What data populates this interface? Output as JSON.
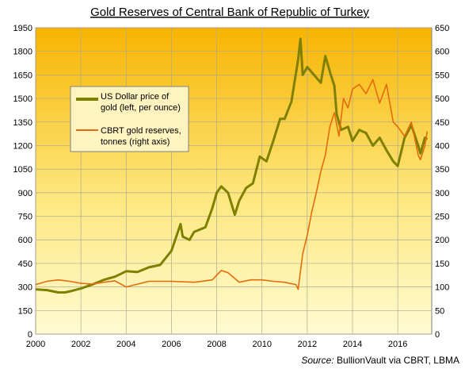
{
  "chart_data": {
    "type": "line",
    "title": "Gold Reserves of Central Bank of Republic of Turkey",
    "x_ticks": [
      "2000",
      "2002",
      "2004",
      "2006",
      "2008",
      "2010",
      "2012",
      "2014",
      "2016"
    ],
    "xlim": [
      2000,
      2017.5
    ],
    "y_left": {
      "ticks": [
        "0",
        "150",
        "300",
        "450",
        "600",
        "750",
        "900",
        "1050",
        "1200",
        "1350",
        "1500",
        "1650",
        "1800",
        "1950"
      ],
      "lim": [
        0,
        1950
      ]
    },
    "y_right": {
      "ticks": [
        "0",
        "50",
        "100",
        "150",
        "200",
        "250",
        "300",
        "350",
        "400",
        "450",
        "500",
        "550",
        "600",
        "650"
      ],
      "lim": [
        0,
        650
      ]
    },
    "grid": true,
    "legend_position": "upper-left",
    "series": [
      {
        "name": "US Dollar price of gold (left, per ounce)",
        "axis": "left",
        "color": "#7f7f00",
        "x": [
          2000.0,
          2000.5,
          2001.0,
          2001.3,
          2001.6,
          2002.0,
          2002.5,
          2003.0,
          2003.5,
          2004.0,
          2004.5,
          2005.0,
          2005.5,
          2006.0,
          2006.4,
          2006.5,
          2006.8,
          2007.0,
          2007.5,
          2007.8,
          2008.0,
          2008.2,
          2008.5,
          2008.8,
          2009.0,
          2009.3,
          2009.6,
          2009.9,
          2010.2,
          2010.5,
          2010.8,
          2011.0,
          2011.3,
          2011.6,
          2011.7,
          2011.8,
          2012.0,
          2012.3,
          2012.6,
          2012.8,
          2013.0,
          2013.2,
          2013.3,
          2013.5,
          2013.8,
          2014.0,
          2014.3,
          2014.6,
          2014.9,
          2015.2,
          2015.5,
          2015.8,
          2016.0,
          2016.3,
          2016.6,
          2016.9,
          2017.0,
          2017.2,
          2017.3
        ],
        "values": [
          285,
          280,
          265,
          265,
          275,
          290,
          315,
          345,
          365,
          400,
          395,
          425,
          440,
          530,
          700,
          620,
          600,
          650,
          680,
          800,
          900,
          940,
          900,
          760,
          850,
          930,
          960,
          1130,
          1100,
          1230,
          1370,
          1370,
          1480,
          1750,
          1880,
          1650,
          1700,
          1650,
          1600,
          1770,
          1670,
          1580,
          1400,
          1300,
          1320,
          1230,
          1300,
          1280,
          1200,
          1250,
          1170,
          1100,
          1070,
          1250,
          1330,
          1200,
          1150,
          1250,
          1240
        ]
      },
      {
        "name": "CBRT gold reserves, tonnes (right axis)",
        "axis": "right",
        "color": "#e46c0a",
        "x": [
          2000.0,
          2000.5,
          2001.0,
          2001.5,
          2002.0,
          2002.5,
          2003.0,
          2003.5,
          2004.0,
          2005.0,
          2006.0,
          2007.0,
          2007.8,
          2008.2,
          2008.5,
          2009.0,
          2009.5,
          2010.0,
          2010.5,
          2011.0,
          2011.5,
          2011.6,
          2011.8,
          2012.0,
          2012.2,
          2012.4,
          2012.6,
          2012.8,
          2013.0,
          2013.2,
          2013.4,
          2013.6,
          2013.8,
          2014.0,
          2014.3,
          2014.6,
          2014.9,
          2015.2,
          2015.5,
          2015.8,
          2016.0,
          2016.3,
          2016.6,
          2016.9,
          2017.0,
          2017.2,
          2017.3
        ],
        "values": [
          105,
          112,
          115,
          112,
          108,
          106,
          110,
          113,
          100,
          112,
          112,
          110,
          115,
          135,
          130,
          110,
          115,
          115,
          112,
          110,
          105,
          95,
          170,
          210,
          260,
          300,
          345,
          380,
          440,
          470,
          420,
          500,
          480,
          520,
          530,
          510,
          540,
          490,
          530,
          450,
          440,
          420,
          450,
          380,
          370,
          400,
          430
        ]
      }
    ]
  },
  "source_label": "Source:",
  "source_text": "BullionVault via CBRT, LBMA"
}
